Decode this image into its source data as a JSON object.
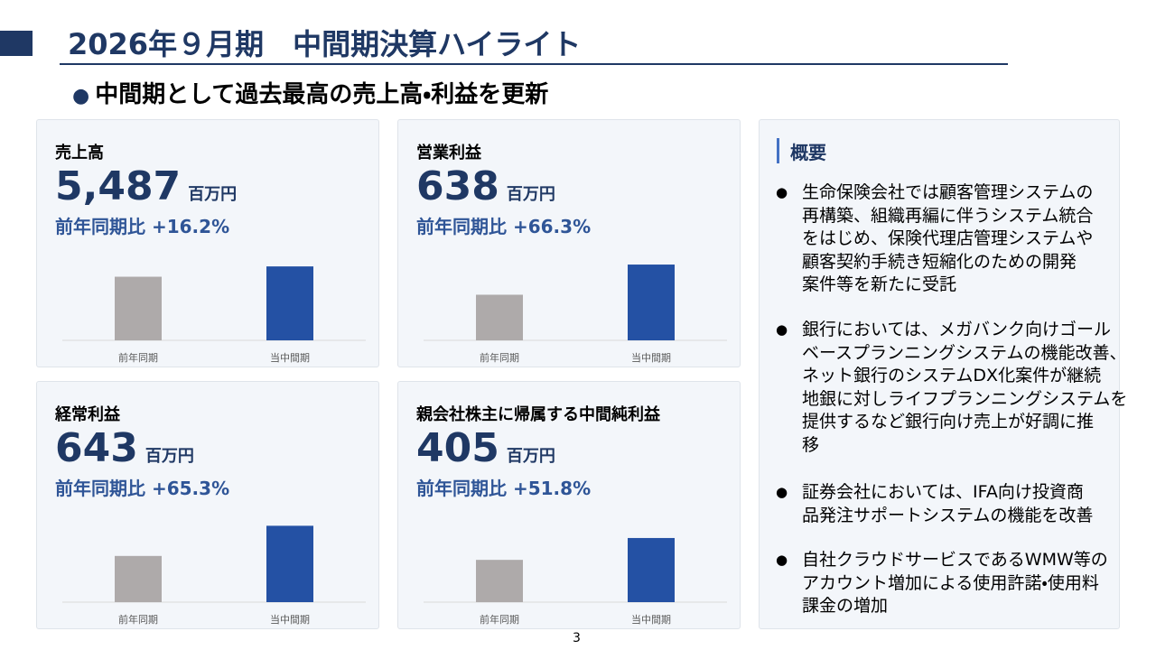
{
  "header": {
    "title": "2026年９月期　中間期決算ハイライト",
    "subtitle": "中間期として過去最高の売上高・利益を更新"
  },
  "cards": [
    {
      "title": "売上高",
      "value": "5,487",
      "unit": "百万円",
      "change": "前年同期比 +16.2%",
      "chart": {
        "type": "bar",
        "categories": [
          "前年同期",
          "当中間期"
        ],
        "values": [
          4722,
          5487
        ],
        "colors": [
          "#aeaaaa",
          "#2451a4"
        ],
        "ylim": [
          0,
          6700
        ]
      }
    },
    {
      "title": "営業利益",
      "value": "638",
      "unit": "百万円",
      "change": "前年同期比 +66.3%",
      "chart": {
        "type": "bar",
        "categories": [
          "前年同期",
          "当中間期"
        ],
        "values": [
          384,
          638
        ],
        "colors": [
          "#aeaaaa",
          "#2451a4"
        ],
        "ylim": [
          0,
          760
        ]
      }
    },
    {
      "title": "経常利益",
      "value": "643",
      "unit": "百万円",
      "change": "前年同期比 +65.3%",
      "chart": {
        "type": "bar",
        "categories": [
          "前年同期",
          "当中間期"
        ],
        "values": [
          389,
          643
        ],
        "colors": [
          "#aeaaaa",
          "#2451a4"
        ],
        "ylim": [
          0,
          760
        ]
      }
    },
    {
      "title": "親会社株主に帰属する中間純利益",
      "value": "405",
      "unit": "百万円",
      "change": "前年同期比 +51.8%",
      "chart": {
        "type": "bar",
        "categories": [
          "前年同期",
          "当中間期"
        ],
        "values": [
          267,
          405
        ],
        "colors": [
          "#aeaaaa",
          "#2451a4"
        ],
        "ylim": [
          0,
          570
        ]
      }
    }
  ],
  "summary": {
    "title": "概要",
    "bullets": [
      [
        "生命保険会社では顧客管理システムの",
        "再構築、組織再編に伴うシステム統合",
        "をはじめ、保険代理店管理システムや",
        "顧客契約手続き短縮化のための開発",
        "案件等を新たに受託"
      ],
      [
        "銀行においては、メガバンク向けゴール",
        "ベースプランニングシステムの機能改善、",
        "ネット銀行のシステムDX化案件が継続",
        "地銀に対しライフプランニングシステムを",
        "提供するなど銀行向け売上が好調に推",
        "移"
      ],
      [
        "証券会社においては、IFA向け投資商",
        "品発注サポートシステムの機能を改善"
      ],
      [
        "自社クラウドサービスであるWMW等の",
        "アカウント増加による使用許諾・使用料",
        "課金の増加"
      ]
    ]
  },
  "page_number": "3"
}
